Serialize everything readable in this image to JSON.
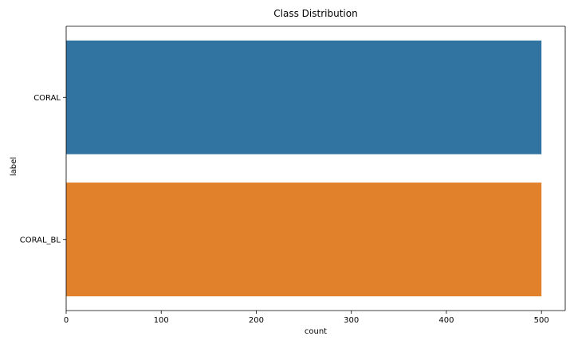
{
  "chart_data": {
    "type": "bar",
    "orientation": "horizontal",
    "title": "Class Distribution",
    "xlabel": "count",
    "ylabel": "label",
    "categories": [
      "CORAL",
      "CORAL_BL"
    ],
    "values": [
      500,
      500
    ],
    "xlim": [
      0,
      525
    ],
    "xticks": [
      0,
      100,
      200,
      300,
      400,
      500
    ],
    "grid": false,
    "colors": [
      "#3274a1",
      "#e1812c"
    ]
  }
}
